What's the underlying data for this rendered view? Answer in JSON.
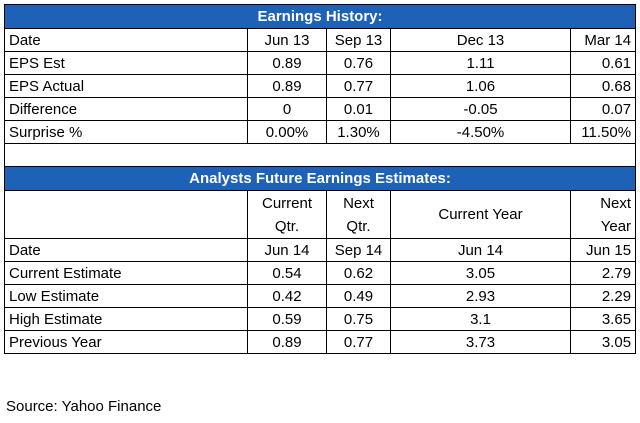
{
  "earnings_history": {
    "title": "Earnings History:",
    "header": [
      "Date",
      "Jun 13",
      "Sep 13",
      "Dec 13",
      "Mar 14"
    ],
    "rows": [
      [
        "EPS Est",
        "0.89",
        "0.76",
        "1.11",
        "0.61"
      ],
      [
        "EPS Actual",
        "0.89",
        "0.77",
        "1.06",
        "0.68"
      ],
      [
        "Difference",
        "0",
        "0.01",
        "-0.05",
        "0.07"
      ],
      [
        "Surprise %",
        "0.00%",
        "1.30%",
        "-4.50%",
        "11.50%"
      ]
    ]
  },
  "estimates": {
    "title": "Analysts Future Earnings Estimates:",
    "period_header": [
      "",
      "Current\nQtr.",
      "Next\nQtr.",
      "Current Year",
      "Next\nYear"
    ],
    "period_header_lines": [
      [
        ""
      ],
      [
        "Current",
        "Qtr."
      ],
      [
        "Next",
        "Qtr."
      ],
      [
        "Current Year"
      ],
      [
        "Next",
        "Year"
      ]
    ],
    "date_row": [
      "Date",
      "Jun 14",
      "Sep 14",
      "Jun 14",
      "Jun 15"
    ],
    "rows": [
      [
        "Current Estimate",
        "0.54",
        "0.62",
        "3.05",
        "2.79"
      ],
      [
        "Low Estimate",
        "0.42",
        "0.49",
        "2.93",
        "2.29"
      ],
      [
        "High Estimate",
        "0.59",
        "0.75",
        "3.1",
        "3.65"
      ],
      [
        "Previous Year",
        "0.89",
        "0.77",
        "3.73",
        "3.05"
      ]
    ]
  },
  "footer": {
    "source": "Source: Yahoo Finance"
  },
  "colors": {
    "header_bg": "#1e62b8",
    "header_text": "#ffffff",
    "border": "#000000"
  }
}
